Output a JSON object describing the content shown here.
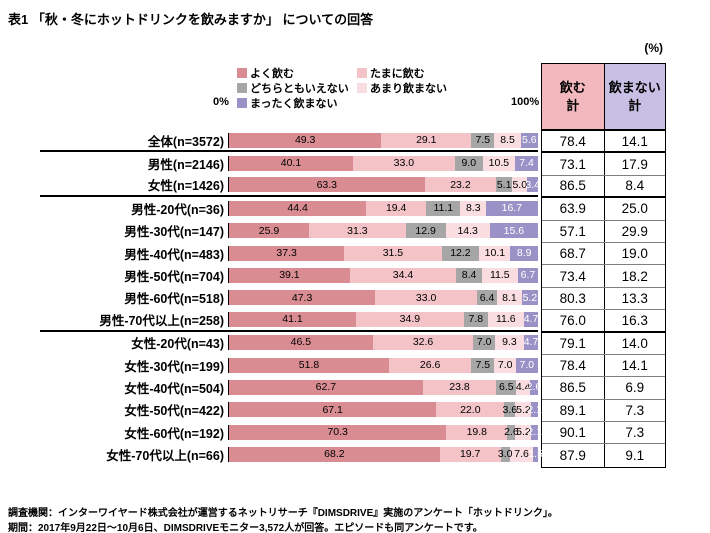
{
  "title": "表1 「秋・冬にホットドリンクを飲みますか」 についての回答",
  "percent_unit_label": "(%)",
  "axis": {
    "min_label": "0%",
    "max_label": "100%"
  },
  "totals_table": {
    "drink_header": "飲む\n計",
    "no_drink_header": "飲まない\n計",
    "drink_header_bg": "#f2b8bd",
    "no_drink_header_bg": "#c8c0e4"
  },
  "footer": {
    "line1": "調査機関：インターワイヤード株式会社が運営するネットリサーチ『DIMSDRIVE』実施のアンケート「ホットドリンク」。",
    "line2": "期間：2017年9月22日～10月6日、DIMSDRIVEモニター3,572人が回答。エピソードも同アンケートです。"
  },
  "chart_data": {
    "type": "bar",
    "stacked": true,
    "orientation": "horizontal",
    "xlim": [
      0,
      100
    ],
    "legend_position": "top",
    "series_names": [
      "よく飲む",
      "たまに飲む",
      "どちらともいえない",
      "あまり飲まない",
      "まったく飲まない"
    ],
    "series_colors": [
      "#d98d92",
      "#f3c3c7",
      "#a6a6a6",
      "#f9dde0",
      "#9a92c6"
    ],
    "label_text_colors": [
      "#000000",
      "#000000",
      "#000000",
      "#000000",
      "#ffffff"
    ],
    "rows": [
      {
        "label": "全体(n=3572)",
        "values": [
          49.3,
          29.1,
          7.5,
          8.5,
          5.6
        ],
        "drink_total": 78.4,
        "no_drink_total": 14.1,
        "separator_after": true
      },
      {
        "label": "男性(n=2146)",
        "values": [
          40.1,
          33.0,
          9.0,
          10.5,
          7.4
        ],
        "drink_total": 73.1,
        "no_drink_total": 17.9,
        "separator_after": false
      },
      {
        "label": "女性(n=1426)",
        "values": [
          63.3,
          23.2,
          5.1,
          5.0,
          3.4
        ],
        "drink_total": 86.5,
        "no_drink_total": 8.4,
        "separator_after": true
      },
      {
        "label": "男性-20代(n=36)",
        "values": [
          44.4,
          19.4,
          11.1,
          8.3,
          16.7
        ],
        "drink_total": 63.9,
        "no_drink_total": 25.0,
        "separator_after": false
      },
      {
        "label": "男性-30代(n=147)",
        "values": [
          25.9,
          31.3,
          12.9,
          14.3,
          15.6
        ],
        "drink_total": 57.1,
        "no_drink_total": 29.9,
        "separator_after": false
      },
      {
        "label": "男性-40代(n=483)",
        "values": [
          37.3,
          31.5,
          12.2,
          10.1,
          8.9
        ],
        "drink_total": 68.7,
        "no_drink_total": 19.0,
        "separator_after": false
      },
      {
        "label": "男性-50代(n=704)",
        "values": [
          39.1,
          34.4,
          8.4,
          11.5,
          6.7
        ],
        "drink_total": 73.4,
        "no_drink_total": 18.2,
        "separator_after": false
      },
      {
        "label": "男性-60代(n=518)",
        "values": [
          47.3,
          33.0,
          6.4,
          8.1,
          5.2
        ],
        "drink_total": 80.3,
        "no_drink_total": 13.3,
        "separator_after": false
      },
      {
        "label": "男性-70代以上(n=258)",
        "values": [
          41.1,
          34.9,
          7.8,
          11.6,
          4.7
        ],
        "drink_total": 76.0,
        "no_drink_total": 16.3,
        "separator_after": true
      },
      {
        "label": "女性-20代(n=43)",
        "values": [
          46.5,
          32.6,
          7.0,
          9.3,
          4.7
        ],
        "drink_total": 79.1,
        "no_drink_total": 14.0,
        "separator_after": false
      },
      {
        "label": "女性-30代(n=199)",
        "values": [
          51.8,
          26.6,
          7.5,
          7.0,
          7.0
        ],
        "drink_total": 78.4,
        "no_drink_total": 14.1,
        "separator_after": false
      },
      {
        "label": "女性-40代(n=504)",
        "values": [
          62.7,
          23.8,
          6.5,
          4.4,
          2.6
        ],
        "drink_total": 86.5,
        "no_drink_total": 6.9,
        "separator_after": false
      },
      {
        "label": "女性-50代(n=422)",
        "values": [
          67.1,
          22.0,
          3.6,
          5.2,
          2.1
        ],
        "drink_total": 89.1,
        "no_drink_total": 7.3,
        "separator_after": false
      },
      {
        "label": "女性-60代(n=192)",
        "values": [
          70.3,
          19.8,
          2.6,
          5.2,
          2.1
        ],
        "drink_total": 90.1,
        "no_drink_total": 7.3,
        "separator_after": false
      },
      {
        "label": "女性-70代以上(n=66)",
        "values": [
          68.2,
          19.7,
          3.0,
          7.6,
          1.5
        ],
        "drink_total": 87.9,
        "no_drink_total": 9.1,
        "separator_after": false
      }
    ]
  }
}
